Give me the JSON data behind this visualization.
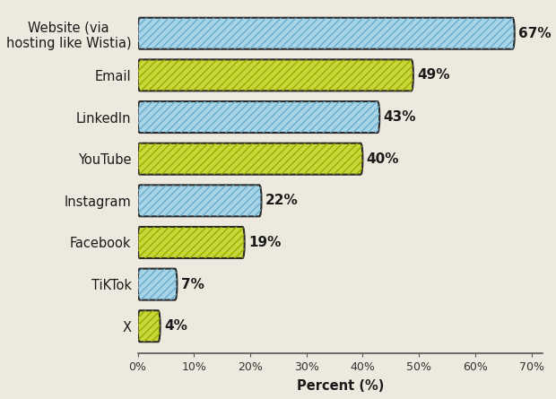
{
  "categories": [
    "Website (via\nhosting like Wistia)",
    "Email",
    "LinkedIn",
    "YouTube",
    "Instagram",
    "Facebook",
    "TiKTok",
    "X"
  ],
  "values": [
    67,
    49,
    43,
    40,
    22,
    19,
    7,
    4
  ],
  "colors": [
    "#A8D4E8",
    "#C8D83A",
    "#A8D4E8",
    "#C8D83A",
    "#A8D4E8",
    "#C8D83A",
    "#A8D4E8",
    "#C8D83A"
  ],
  "hatch_colors": [
    "#6AABCC",
    "#9AAA00",
    "#6AABCC",
    "#9AAA00",
    "#6AABCC",
    "#9AAA00",
    "#6AABCC",
    "#9AAA00"
  ],
  "edge_color": "#2a2a2a",
  "background_color": "#EDE9DE",
  "bar_height": 0.75,
  "xlim": [
    0,
    72
  ],
  "xlabel": "Percent (%)",
  "xticks": [
    0,
    10,
    20,
    30,
    40,
    50,
    60,
    70
  ],
  "xtick_labels": [
    "0%",
    "10%",
    "20%",
    "30%",
    "40%",
    "50%",
    "60%",
    "70%"
  ],
  "label_fontsize": 10.5,
  "tick_fontsize": 9,
  "xlabel_fontsize": 10.5,
  "pct_fontsize": 11
}
